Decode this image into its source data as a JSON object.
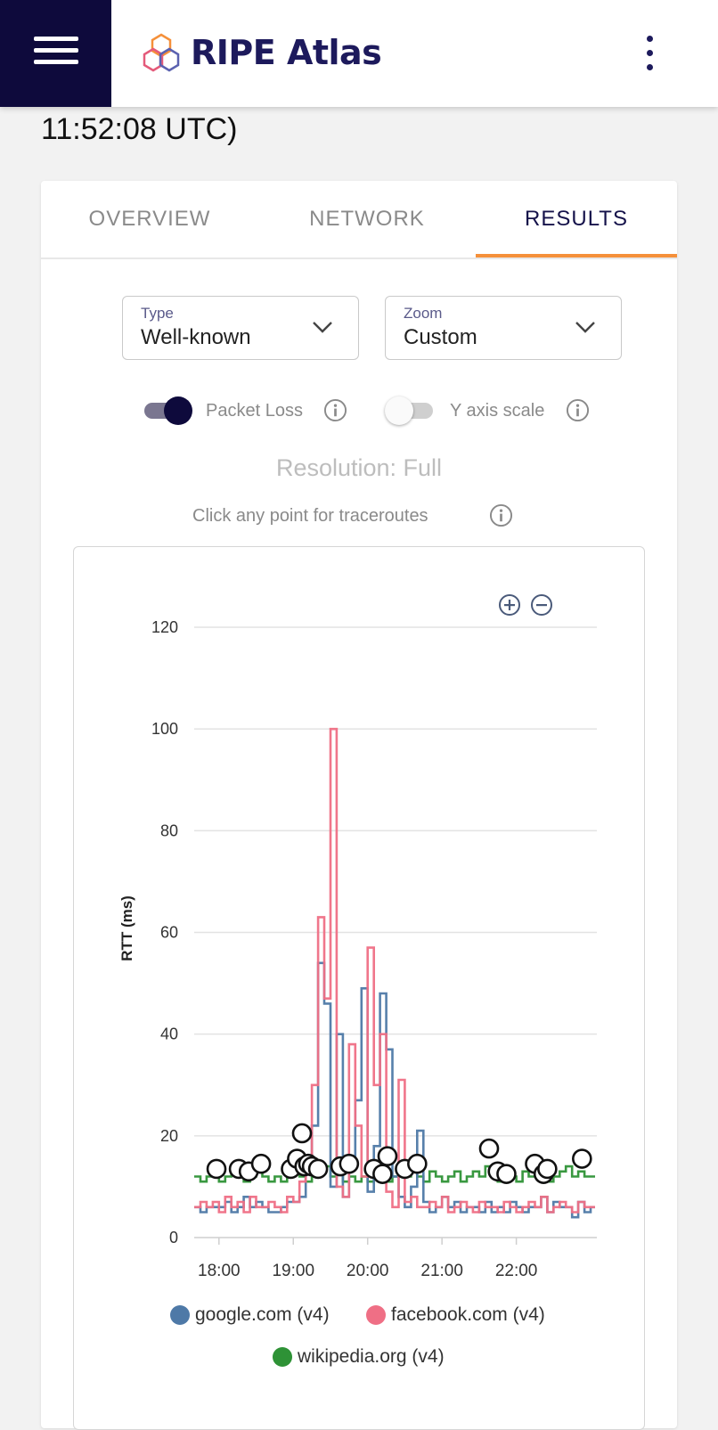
{
  "app": {
    "brand": "RIPE Atlas"
  },
  "header_time": "11:52:08 UTC)",
  "tabs": [
    {
      "label": "OVERVIEW",
      "active": false
    },
    {
      "label": "NETWORK",
      "active": false
    },
    {
      "label": "RESULTS",
      "active": true
    }
  ],
  "controls": {
    "type": {
      "label": "Type",
      "value": "Well-known"
    },
    "zoom": {
      "label": "Zoom",
      "value": "Custom"
    },
    "packet_loss": {
      "label": "Packet Loss",
      "on": true
    },
    "y_axis_scale": {
      "label": "Y axis scale",
      "on": false
    },
    "resolution": "Resolution: Full",
    "hint": "Click any point for traceroutes"
  },
  "colors": {
    "nav_dark": "#0e0a3c",
    "accent_orange": "#f5903a",
    "google": "#4e79a7",
    "facebook": "#ef6f85",
    "wikipedia": "#2e9236"
  },
  "chart_data": {
    "type": "line",
    "title": "",
    "ylabel": "RTT (ms)",
    "xlabel": "",
    "ylim": [
      0,
      120
    ],
    "yticks": [
      0,
      20,
      40,
      60,
      80,
      100,
      120
    ],
    "xlim": [
      "17:40",
      "23:05"
    ],
    "xticks": [
      "18:00",
      "19:00",
      "20:00",
      "21:00",
      "22:00"
    ],
    "step": true,
    "series": [
      {
        "name": "google.com (v4)",
        "color": "#4e79a7",
        "x": [
          "17:40",
          "17:45",
          "17:50",
          "17:55",
          "18:00",
          "18:05",
          "18:10",
          "18:15",
          "18:20",
          "18:25",
          "18:30",
          "18:35",
          "18:40",
          "18:45",
          "18:50",
          "18:55",
          "19:00",
          "19:05",
          "19:10",
          "19:15",
          "19:20",
          "19:25",
          "19:30",
          "19:35",
          "19:40",
          "19:45",
          "19:50",
          "19:55",
          "20:00",
          "20:05",
          "20:10",
          "20:15",
          "20:20",
          "20:25",
          "20:30",
          "20:35",
          "20:40",
          "20:45",
          "20:50",
          "20:55",
          "21:00",
          "21:05",
          "21:10",
          "21:15",
          "21:20",
          "21:25",
          "21:30",
          "21:35",
          "21:40",
          "21:45",
          "21:50",
          "21:55",
          "22:00",
          "22:05",
          "22:10",
          "22:15",
          "22:20",
          "22:25",
          "22:30",
          "22:35",
          "22:40",
          "22:45",
          "22:50",
          "22:55",
          "23:00"
        ],
        "y": [
          6,
          5,
          6,
          6,
          6,
          7,
          5,
          6,
          8,
          6,
          7,
          6,
          5,
          5,
          6,
          7,
          7,
          8,
          14,
          22,
          54,
          46,
          10,
          40,
          8,
          16,
          27,
          49,
          9,
          18,
          48,
          37,
          12,
          8,
          6,
          10,
          21,
          7,
          5,
          6,
          8,
          6,
          7,
          5,
          6,
          6,
          5,
          7,
          5,
          6,
          5,
          7,
          6,
          5,
          6,
          6,
          8,
          5,
          7,
          6,
          6,
          4,
          7,
          5,
          6
        ]
      },
      {
        "name": "facebook.com (v4)",
        "color": "#ef6f85",
        "x": [
          "17:40",
          "17:45",
          "17:50",
          "17:55",
          "18:00",
          "18:05",
          "18:10",
          "18:15",
          "18:20",
          "18:25",
          "18:30",
          "18:35",
          "18:40",
          "18:45",
          "18:50",
          "18:55",
          "19:00",
          "19:05",
          "19:10",
          "19:15",
          "19:20",
          "19:25",
          "19:30",
          "19:35",
          "19:40",
          "19:45",
          "19:50",
          "19:55",
          "20:00",
          "20:05",
          "20:10",
          "20:15",
          "20:20",
          "20:25",
          "20:30",
          "20:35",
          "20:40",
          "20:45",
          "20:50",
          "20:55",
          "21:00",
          "21:05",
          "21:10",
          "21:15",
          "21:20",
          "21:25",
          "21:30",
          "21:35",
          "21:40",
          "21:45",
          "21:50",
          "21:55",
          "22:00",
          "22:05",
          "22:10",
          "22:15",
          "22:20",
          "22:25",
          "22:30",
          "22:35",
          "22:40",
          "22:45",
          "22:50",
          "22:55",
          "23:00"
        ],
        "y": [
          6,
          7,
          6,
          7,
          5,
          8,
          6,
          7,
          5,
          8,
          6,
          6,
          7,
          6,
          5,
          8,
          7,
          11,
          16,
          30,
          63,
          47,
          100,
          10,
          8,
          38,
          22,
          12,
          57,
          30,
          40,
          9,
          6,
          31,
          7,
          8,
          6,
          6,
          7,
          6,
          8,
          5,
          6,
          7,
          6,
          5,
          7,
          6,
          6,
          5,
          7,
          6,
          5,
          6,
          7,
          6,
          8,
          5,
          6,
          7,
          6,
          5,
          7,
          6,
          6
        ]
      },
      {
        "name": "wikipedia.org (v4)",
        "color": "#2e9236",
        "x": [
          "17:40",
          "17:45",
          "17:50",
          "17:55",
          "18:00",
          "18:05",
          "18:10",
          "18:15",
          "18:20",
          "18:25",
          "18:30",
          "18:35",
          "18:40",
          "18:45",
          "18:50",
          "18:55",
          "19:00",
          "19:05",
          "19:10",
          "19:15",
          "19:20",
          "19:25",
          "19:30",
          "19:35",
          "19:40",
          "19:45",
          "19:50",
          "19:55",
          "20:00",
          "20:05",
          "20:10",
          "20:15",
          "20:20",
          "20:25",
          "20:30",
          "20:35",
          "20:40",
          "20:45",
          "20:50",
          "20:55",
          "21:00",
          "21:05",
          "21:10",
          "21:15",
          "21:20",
          "21:25",
          "21:30",
          "21:35",
          "21:40",
          "21:45",
          "21:50",
          "21:55",
          "22:00",
          "22:05",
          "22:10",
          "22:15",
          "22:20",
          "22:25",
          "22:30",
          "22:35",
          "22:40",
          "22:45",
          "22:50",
          "22:55",
          "23:00"
        ],
        "y": [
          12,
          11,
          12,
          13,
          11,
          12,
          13,
          12,
          11,
          12,
          13,
          12,
          11,
          12,
          11,
          12,
          13,
          12,
          11,
          12,
          13,
          14,
          12,
          13,
          11,
          12,
          11,
          12,
          11,
          12,
          13,
          11,
          12,
          13,
          12,
          14,
          12,
          11,
          13,
          12,
          11,
          12,
          13,
          11,
          12,
          13,
          12,
          14,
          12,
          11,
          13,
          12,
          11,
          13,
          12,
          12,
          13,
          11,
          12,
          13,
          14,
          12,
          13,
          12,
          12
        ]
      }
    ],
    "packet_loss_markers": {
      "x": [
        "17:58",
        "18:16",
        "18:24",
        "18:34",
        "18:58",
        "19:03",
        "19:07",
        "19:09",
        "19:12",
        "19:15",
        "19:20",
        "19:38",
        "19:45",
        "20:05",
        "20:12",
        "20:16",
        "20:30",
        "20:40",
        "21:38",
        "21:45",
        "21:52",
        "22:15",
        "22:22",
        "22:25",
        "22:53"
      ],
      "y": [
        13.5,
        13.5,
        13,
        14.5,
        13.5,
        15.5,
        20.5,
        14,
        14.5,
        14,
        13.5,
        14,
        14.5,
        13.5,
        12.5,
        16,
        13.5,
        14.5,
        17.5,
        13,
        12.5,
        14.5,
        12.5,
        13.5,
        15.5
      ]
    },
    "legend": [
      "google.com (v4)",
      "facebook.com (v4)",
      "wikipedia.org (v4)"
    ]
  }
}
